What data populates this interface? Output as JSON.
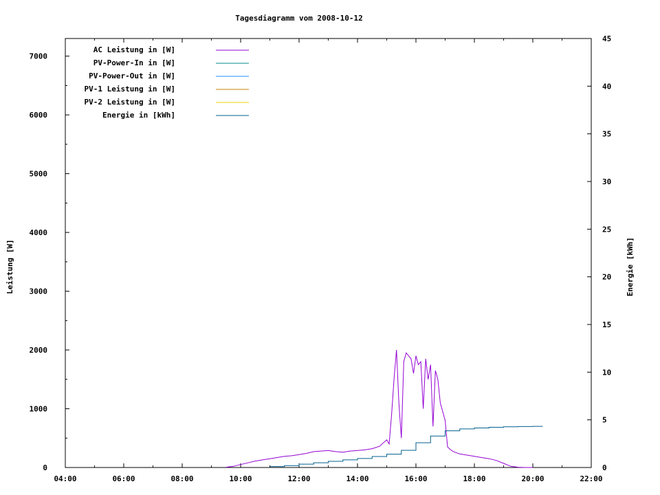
{
  "chart_data": {
    "type": "line",
    "title": "Tagesdiagramm vom 2008-10-12",
    "xlabel": "",
    "ylabel": "Leistung [W]",
    "y2label": "Energie [kWh]",
    "x_ticks": [
      "04:00",
      "06:00",
      "08:00",
      "10:00",
      "12:00",
      "14:00",
      "16:00",
      "18:00",
      "20:00",
      "22:00"
    ],
    "xlim_hours": [
      4,
      22
    ],
    "ylim": [
      0,
      7300
    ],
    "y_ticks": [
      0,
      1000,
      2000,
      3000,
      4000,
      5000,
      6000,
      7000
    ],
    "y2lim": [
      0,
      45
    ],
    "y2_ticks": [
      0,
      5,
      10,
      15,
      20,
      25,
      30,
      35,
      40,
      45
    ],
    "grid": false,
    "legend_position": "top-left",
    "series": [
      {
        "name": "AC Leistung in [W]",
        "color": "#9400d3",
        "axis": "left",
        "x": [
          "09:30",
          "09:45",
          "10:00",
          "10:15",
          "10:30",
          "10:45",
          "11:00",
          "11:15",
          "11:30",
          "11:45",
          "12:00",
          "12:15",
          "12:30",
          "12:45",
          "13:00",
          "13:15",
          "13:30",
          "13:45",
          "14:00",
          "14:15",
          "14:30",
          "14:45",
          "15:00",
          "15:05",
          "15:10",
          "15:15",
          "15:20",
          "15:25",
          "15:30",
          "15:35",
          "15:40",
          "15:45",
          "15:50",
          "15:55",
          "16:00",
          "16:05",
          "16:10",
          "16:15",
          "16:20",
          "16:25",
          "16:30",
          "16:35",
          "16:40",
          "16:45",
          "16:50",
          "16:55",
          "17:00",
          "17:05",
          "17:10",
          "17:15",
          "17:20",
          "17:30",
          "17:45",
          "18:00",
          "18:15",
          "18:30",
          "18:45",
          "19:00",
          "19:15",
          "19:30",
          "19:45",
          "19:50",
          "20:00"
        ],
        "values": [
          5,
          20,
          50,
          80,
          110,
          130,
          150,
          170,
          190,
          200,
          220,
          240,
          270,
          280,
          290,
          270,
          260,
          280,
          290,
          300,
          320,
          360,
          470,
          400,
          900,
          1500,
          2000,
          1100,
          500,
          1800,
          1950,
          1900,
          1850,
          1600,
          1900,
          1750,
          1800,
          1000,
          1850,
          1500,
          1750,
          700,
          1650,
          1500,
          1100,
          950,
          800,
          350,
          310,
          280,
          260,
          230,
          210,
          190,
          170,
          150,
          120,
          70,
          20,
          5,
          0,
          0,
          0
        ]
      },
      {
        "name": "PV-Power-In in [W]",
        "color": "#008b8b",
        "axis": "left",
        "x": [],
        "values": []
      },
      {
        "name": "PV-Power-Out in [W]",
        "color": "#1e90ff",
        "axis": "left",
        "x": [],
        "values": []
      },
      {
        "name": "PV-1 Leistung in [W]",
        "color": "#c08000",
        "axis": "left",
        "x": [],
        "values": []
      },
      {
        "name": "PV-2 Leistung in [W]",
        "color": "#e8d000",
        "axis": "left",
        "x": [],
        "values": []
      },
      {
        "name": "Energie in [kWh]",
        "color": "#005f8f",
        "axis": "right",
        "x": [
          "11:00",
          "11:30",
          "12:00",
          "12:30",
          "13:00",
          "13:30",
          "14:00",
          "14:30",
          "15:00",
          "15:30",
          "16:00",
          "16:30",
          "17:00",
          "17:30",
          "18:00",
          "18:30",
          "19:00",
          "19:30",
          "20:00",
          "20:20"
        ],
        "values": [
          0.1,
          0.2,
          0.35,
          0.5,
          0.65,
          0.8,
          0.95,
          1.15,
          1.4,
          1.8,
          2.6,
          3.3,
          3.85,
          4.05,
          4.15,
          4.22,
          4.27,
          4.3,
          4.32,
          4.33
        ]
      }
    ]
  }
}
